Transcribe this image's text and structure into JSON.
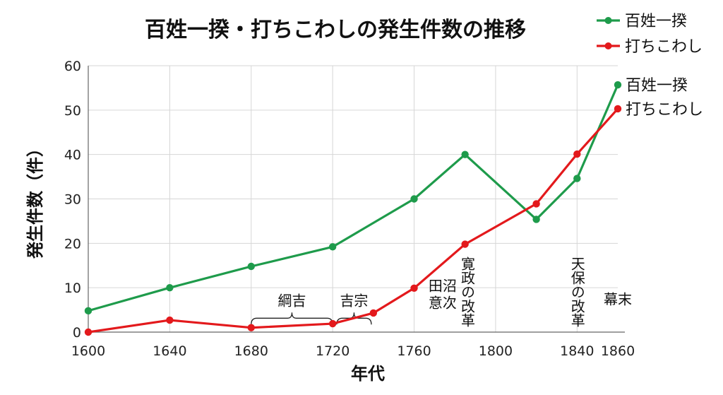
{
  "chart_data": {
    "type": "line",
    "title": "百姓一揆・打ちこわしの発生件数の推移",
    "xlabel": "年代",
    "ylabel": "発生件数（件）",
    "xlim": [
      1600,
      1860
    ],
    "ylim": [
      0,
      60
    ],
    "yticks": [
      0,
      10,
      20,
      30,
      40,
      50,
      60
    ],
    "xticks": [
      1600,
      1640,
      1680,
      1720,
      1760,
      1800,
      1840,
      1860
    ],
    "vgrid": [
      1600,
      1640,
      1680,
      1720,
      1760,
      1800,
      1840
    ],
    "grid": true,
    "legend_position": "top-right",
    "series": [
      {
        "name": "百姓一揆",
        "color": "#1e9b4b",
        "end_label": "百姓一揆",
        "x": [
          1600,
          1640,
          1680,
          1720,
          1760,
          1785,
          1820,
          1840,
          1860
        ],
        "y": [
          4.8,
          10,
          14.8,
          19.2,
          30,
          40,
          25.4,
          34.6,
          55.7
        ]
      },
      {
        "name": "打ちこわし",
        "color": "#e3191c",
        "end_label": "打ちこわし",
        "x": [
          1600,
          1640,
          1680,
          1720,
          1740,
          1760,
          1785,
          1820,
          1840,
          1860
        ],
        "y": [
          0,
          2.7,
          1.0,
          1.9,
          4.3,
          9.9,
          19.8,
          28.9,
          40.1,
          50.3
        ]
      }
    ],
    "annotations": [
      {
        "text": "綱吉",
        "type": "brace",
        "x_start": 1680,
        "x_end": 1720,
        "y": 2.5
      },
      {
        "text": "吉宗",
        "type": "brace",
        "x_start": 1722,
        "x_end": 1739,
        "y": 2.5
      },
      {
        "text": "田沼意次",
        "type": "horizontal",
        "x": 1774,
        "y": 5.5,
        "lines": [
          "田沼",
          "意次"
        ]
      },
      {
        "text": "寛政の改革",
        "type": "vertical",
        "x": 1786,
        "y": 18
      },
      {
        "text": "天保の改革",
        "type": "vertical",
        "x": 1840,
        "y": 18
      },
      {
        "text": "幕末",
        "type": "horizontal",
        "x": 1860,
        "y": 6.3,
        "lines": [
          "幕末"
        ]
      }
    ]
  }
}
